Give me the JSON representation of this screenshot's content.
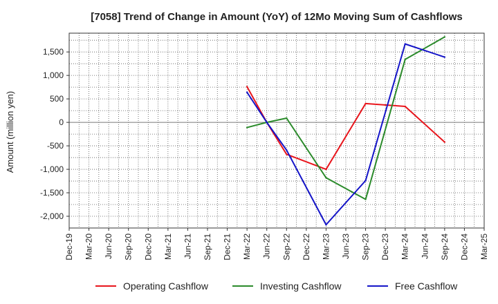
{
  "chart_data": {
    "type": "line",
    "title": "[7058]  Trend of Change in Amount (YoY) of 12Mo Moving Sum of Cashflows",
    "xlabel": "",
    "ylabel": "Amount (million yen)",
    "categories": [
      "Dec-19",
      "Mar-20",
      "Jun-20",
      "Sep-20",
      "Dec-20",
      "Mar-21",
      "Jun-21",
      "Sep-21",
      "Dec-21",
      "Mar-22",
      "Jun-22",
      "Sep-22",
      "Dec-22",
      "Mar-23",
      "Jun-23",
      "Sep-23",
      "Dec-23",
      "Mar-24",
      "Jun-24",
      "Sep-24",
      "Dec-24",
      "Mar-25"
    ],
    "ylim": [
      -2250,
      1900
    ],
    "yticks": [
      -2000,
      -1500,
      -1000,
      -500,
      0,
      500,
      1000,
      1500
    ],
    "ytick_labels": [
      "-2,000",
      "-1,500",
      "-1,000",
      "-500",
      "0",
      "500",
      "1,000",
      "1,500"
    ],
    "grid": true,
    "series": [
      {
        "name": "Operating Cashflow",
        "color": "#e8141b",
        "values": [
          null,
          null,
          null,
          null,
          null,
          null,
          null,
          null,
          null,
          760,
          0,
          -680,
          null,
          -1000,
          null,
          400,
          null,
          340,
          null,
          -420,
          null,
          null
        ]
      },
      {
        "name": "Investing Cashflow",
        "color": "#2a8a2a",
        "values": [
          null,
          null,
          null,
          null,
          null,
          null,
          null,
          null,
          null,
          -110,
          0,
          90,
          null,
          -1180,
          null,
          -1640,
          null,
          1340,
          null,
          1820,
          null,
          null
        ]
      },
      {
        "name": "Free Cashflow",
        "color": "#1414c8",
        "values": [
          null,
          null,
          null,
          null,
          null,
          null,
          null,
          null,
          null,
          640,
          0,
          -590,
          null,
          -2180,
          null,
          -1240,
          null,
          1670,
          null,
          1390,
          null,
          null
        ]
      }
    ],
    "legend_position": "bottom"
  }
}
